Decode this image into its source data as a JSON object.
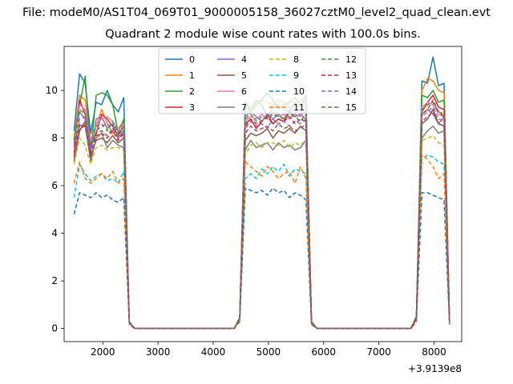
{
  "figure": {
    "suptitle": "File: modeM0/AS1T04_069T01_9000005158_36027cztM0_level2_quad_clean.evt",
    "title": "Quadrant 2 module wise count rates with 100.0s bins.",
    "x_offset_label": "+3.9139e8"
  },
  "chart_data": {
    "type": "line",
    "title": "Quadrant 2 module wise count rates with 100.0s bins.",
    "xlabel": "",
    "ylabel": "",
    "xlim": [
      1300,
      8500
    ],
    "ylim": [
      -0.55,
      11.85
    ],
    "x_offset": 391390000,
    "grid": false,
    "legend_placement": "top-center",
    "xticks": [
      2000,
      3000,
      4000,
      5000,
      6000,
      7000,
      8000
    ],
    "yticks": [
      0,
      2,
      4,
      6,
      8,
      10
    ],
    "x": [
      1480,
      1580,
      1680,
      1780,
      1880,
      1980,
      2080,
      2180,
      2280,
      2380,
      2480,
      2580,
      2680,
      2780,
      2880,
      2980,
      3080,
      3180,
      3280,
      3380,
      3480,
      3580,
      3680,
      3780,
      3880,
      3980,
      4080,
      4180,
      4280,
      4380,
      4480,
      4580,
      4680,
      4780,
      4880,
      4980,
      5080,
      5180,
      5280,
      5380,
      5480,
      5580,
      5680,
      5780,
      5880,
      5980,
      6080,
      6180,
      6280,
      6380,
      6480,
      6580,
      6680,
      6780,
      6880,
      6980,
      7080,
      7180,
      7280,
      7380,
      7480,
      7580,
      7680,
      7780,
      7880,
      7980,
      8080,
      8180,
      8280
    ],
    "active_windows": [
      [
        1480,
        2380
      ],
      [
        4580,
        5680
      ],
      [
        7780,
        8180
      ]
    ],
    "series": [
      {
        "name": "0",
        "color": "#1f77b4",
        "dash": "solid",
        "segments": [
          [
            8.3,
            10.7,
            10.3,
            8.2,
            9.5,
            9.4,
            10.0,
            9.4,
            9.1,
            9.7
          ],
          [
            9.5,
            9.2,
            9.6,
            9.4,
            8.9,
            9.3,
            9.4,
            9.2,
            9.1,
            9.5,
            9.3,
            9.8
          ],
          [
            10.4,
            10.3,
            11.4,
            10.2,
            10.3
          ]
        ]
      },
      {
        "name": "1",
        "color": "#ff7f0e",
        "dash": "solid",
        "segments": [
          [
            8.0,
            9.8,
            9.6,
            7.9,
            8.5,
            9.2,
            8.6,
            8.2,
            8.4,
            8.7
          ],
          [
            9.3,
            9.2,
            9.5,
            9.6,
            9.5,
            9.4,
            9.6,
            9.5,
            9.3,
            9.4,
            9.6,
            9.7
          ],
          [
            10.0,
            10.5,
            10.4,
            10.0,
            9.9
          ]
        ]
      },
      {
        "name": "2",
        "color": "#2ca02c",
        "dash": "solid",
        "segments": [
          [
            7.9,
            9.4,
            10.6,
            7.4,
            9.8,
            9.9,
            9.8,
            9.4,
            8.2,
            8.8
          ],
          [
            9.3,
            9.1,
            9.4,
            9.6,
            9.9,
            9.6,
            9.2,
            9.4,
            9.5,
            9.7,
            9.4,
            9.6
          ],
          [
            9.8,
            9.7,
            10.0,
            9.5,
            9.6
          ]
        ]
      },
      {
        "name": "3",
        "color": "#d62728",
        "dash": "solid",
        "segments": [
          [
            7.2,
            9.6,
            9.0,
            7.6,
            8.2,
            9.0,
            8.8,
            8.5,
            8.1,
            8.5
          ],
          [
            8.6,
            8.8,
            8.4,
            8.7,
            9.0,
            8.6,
            8.8,
            8.7,
            9.1,
            8.9,
            9.0,
            9.1
          ],
          [
            9.1,
            9.5,
            9.8,
            9.3,
            9.2
          ]
        ]
      },
      {
        "name": "4",
        "color": "#9467bd",
        "dash": "solid",
        "segments": [
          [
            7.8,
            9.1,
            8.8,
            7.4,
            8.8,
            8.9,
            8.4,
            8.6,
            8.0,
            8.3
          ],
          [
            8.9,
            9.1,
            8.9,
            8.7,
            9.0,
            8.8,
            9.0,
            8.8,
            9.2,
            8.9,
            9.0,
            8.8
          ],
          [
            9.0,
            9.2,
            9.0,
            8.6,
            8.9
          ]
        ]
      },
      {
        "name": "5",
        "color": "#8c564b",
        "dash": "solid",
        "segments": [
          [
            7.0,
            8.3,
            8.7,
            7.2,
            7.9,
            8.0,
            7.8,
            8.1,
            7.8,
            8.0
          ],
          [
            7.9,
            8.2,
            8.1,
            8.2,
            8.4,
            8.0,
            8.3,
            8.2,
            8.4,
            8.2,
            8.5,
            8.3
          ],
          [
            8.6,
            8.8,
            9.2,
            8.6,
            8.5
          ]
        ]
      },
      {
        "name": "6",
        "color": "#e377c2",
        "dash": "solid",
        "segments": [
          [
            7.6,
            9.4,
            9.2,
            7.8,
            8.6,
            8.8,
            8.9,
            8.7,
            8.3,
            8.6
          ],
          [
            8.7,
            8.9,
            8.8,
            9.0,
            8.8,
            9.1,
            8.9,
            9.0,
            8.8,
            9.0,
            8.9,
            9.2
          ],
          [
            9.3,
            9.5,
            9.4,
            9.0,
            8.9
          ]
        ]
      },
      {
        "name": "7",
        "color": "#7f7f7f",
        "dash": "solid",
        "segments": [
          [
            7.1,
            8.5,
            8.6,
            7.0,
            8.0,
            8.2,
            7.6,
            7.9,
            7.7,
            7.6
          ],
          [
            7.5,
            7.9,
            7.6,
            7.7,
            7.8,
            7.5,
            7.8,
            7.6,
            7.7,
            7.5,
            7.6,
            7.9
          ],
          [
            8.0,
            8.3,
            8.5,
            8.2,
            8.3
          ]
        ]
      },
      {
        "name": "8",
        "color": "#bcbd22",
        "dash": "dashed",
        "segments": [
          [
            6.9,
            8.0,
            7.7,
            6.9,
            7.6,
            7.7,
            7.5,
            7.6,
            7.6,
            7.5
          ],
          [
            7.3,
            7.7,
            7.8,
            7.6,
            7.8,
            7.8,
            7.7,
            7.9,
            7.6,
            7.8,
            7.7,
            7.9
          ],
          [
            7.9,
            8.0,
            8.1,
            7.8,
            7.7
          ]
        ]
      },
      {
        "name": "9",
        "color": "#17becf",
        "dash": "dashed",
        "segments": [
          [
            5.5,
            6.9,
            6.5,
            6.2,
            6.4,
            6.5,
            6.2,
            6.3,
            6.1,
            6.6
          ],
          [
            6.3,
            6.5,
            6.3,
            6.7,
            6.5,
            6.8,
            6.6,
            6.9,
            6.4,
            6.7,
            6.6,
            6.5
          ],
          [
            7.1,
            7.3,
            7.2,
            7.0,
            6.9
          ]
        ]
      },
      {
        "name": "10",
        "color": "#1f77b4",
        "dash": "dashed",
        "segments": [
          [
            4.8,
            5.7,
            5.6,
            5.5,
            5.7,
            5.5,
            5.6,
            5.4,
            5.3,
            5.5
          ],
          [
            5.9,
            5.8,
            5.7,
            5.8,
            5.6,
            5.9,
            5.7,
            5.8,
            5.5,
            5.7,
            5.6,
            5.4
          ],
          [
            5.7,
            5.7,
            5.6,
            5.5,
            5.4
          ]
        ]
      },
      {
        "name": "11",
        "color": "#ff7f0e",
        "dash": "dashed",
        "segments": [
          [
            6.1,
            7.0,
            6.3,
            6.1,
            6.3,
            6.5,
            6.3,
            6.6,
            6.1,
            6.3
          ],
          [
            7.0,
            6.8,
            6.6,
            6.4,
            6.8,
            6.6,
            6.3,
            6.5,
            6.6,
            6.1,
            6.8,
            6.3
          ],
          [
            7.3,
            7.1,
            6.8,
            6.3,
            6.5
          ]
        ]
      },
      {
        "name": "12",
        "color": "#2ca02c",
        "dash": "dashed",
        "segments": [
          [
            7.9,
            9.2,
            9.0,
            7.7,
            8.5,
            8.6,
            8.3,
            8.7,
            8.2,
            8.5
          ],
          [
            8.8,
            9.0,
            8.7,
            8.9,
            8.8,
            9.0,
            8.9,
            8.8,
            9.0,
            8.9,
            8.7,
            9.0
          ],
          [
            9.2,
            9.4,
            9.5,
            9.1,
            9.0
          ]
        ]
      },
      {
        "name": "13",
        "color": "#d62728",
        "dash": "dashed",
        "segments": [
          [
            7.4,
            8.6,
            8.5,
            7.3,
            8.1,
            8.2,
            8.0,
            8.3,
            7.9,
            8.2
          ],
          [
            8.5,
            8.8,
            8.6,
            8.7,
            8.9,
            8.6,
            8.8,
            8.7,
            8.9,
            8.6,
            8.8,
            8.7
          ],
          [
            9.0,
            9.2,
            9.6,
            9.1,
            8.9
          ]
        ]
      },
      {
        "name": "14",
        "color": "#9467bd",
        "dash": "dashed",
        "segments": [
          [
            7.6,
            8.8,
            8.9,
            7.5,
            8.3,
            8.5,
            8.6,
            8.4,
            8.1,
            8.3
          ],
          [
            8.4,
            8.7,
            8.5,
            8.6,
            8.4,
            8.8,
            8.6,
            8.7,
            8.5,
            8.7,
            8.6,
            8.8
          ],
          [
            8.9,
            9.1,
            9.3,
            8.8,
            8.7
          ]
        ]
      },
      {
        "name": "15",
        "color": "#8c564b",
        "dash": "dashed",
        "segments": [
          [
            7.7,
            8.4,
            8.5,
            7.2,
            8.2,
            8.3,
            8.1,
            8.4,
            8.0,
            8.2
          ],
          [
            8.2,
            8.5,
            8.3,
            8.4,
            8.5,
            8.3,
            8.6,
            8.4,
            8.5,
            8.3,
            8.4,
            8.6
          ],
          [
            8.7,
            8.9,
            9.1,
            8.6,
            8.5
          ]
        ]
      }
    ]
  }
}
